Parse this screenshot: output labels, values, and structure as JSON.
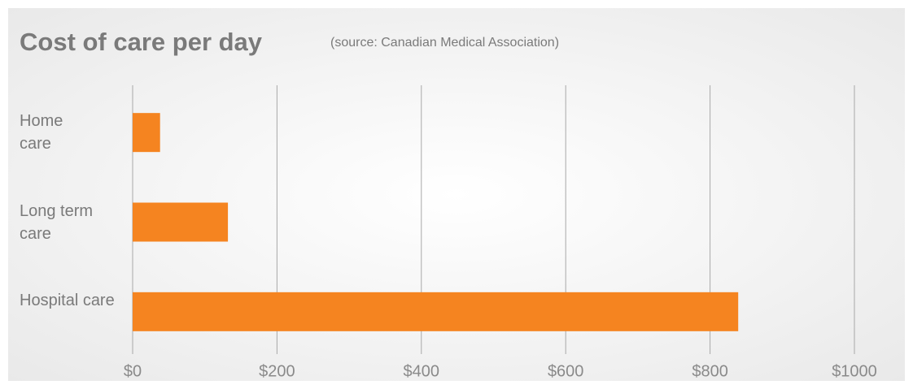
{
  "chart_data": {
    "type": "bar",
    "orientation": "horizontal",
    "title": "Cost of care per day",
    "subtitle": "(source: Canadian Medical Association)",
    "categories": [
      "Home care",
      "Long term care",
      "Hospital care"
    ],
    "values": [
      38,
      132,
      839
    ],
    "color": "#f58420",
    "xlim": [
      0,
      1000
    ],
    "xticks": [
      {
        "value": 0,
        "label": "$0"
      },
      {
        "value": 200,
        "label": "$200"
      },
      {
        "value": 400,
        "label": "$400"
      },
      {
        "value": 600,
        "label": "$600"
      },
      {
        "value": 800,
        "label": "$800"
      },
      {
        "value": 1000,
        "label": "$1000"
      }
    ],
    "grid": true
  }
}
